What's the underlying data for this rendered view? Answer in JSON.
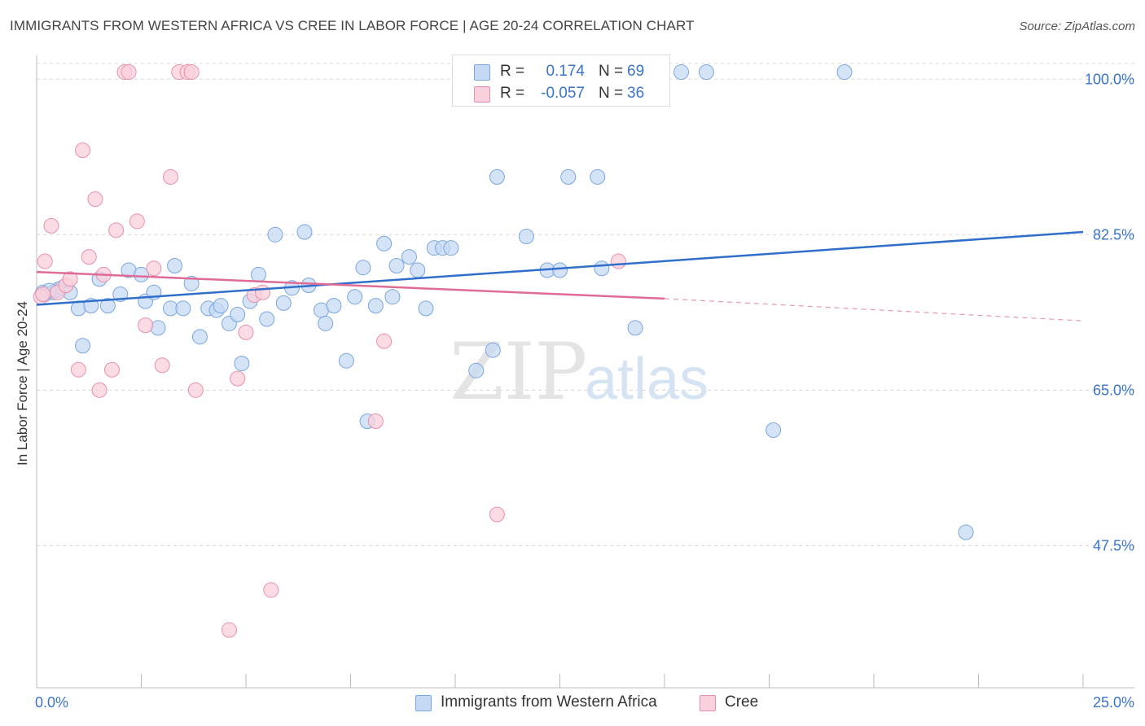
{
  "header": {
    "title": "IMMIGRANTS FROM WESTERN AFRICA VS CREE IN LABOR FORCE | AGE 20-24 CORRELATION CHART",
    "source": "Source: ZipAtlas.com"
  },
  "watermark": {
    "zip": "ZIP",
    "atlas": "atlas"
  },
  "legend": {
    "rows": [
      {
        "r_label": "R =",
        "r_value": "0.174",
        "n_label": "N =",
        "n_value": "69"
      },
      {
        "r_label": "R =",
        "r_value": "-0.057",
        "n_label": "N =",
        "n_value": "36"
      }
    ]
  },
  "bottom_legend": {
    "series1": "Immigrants from Western Africa",
    "series2": "Cree"
  },
  "colors": {
    "blue_fill": "#c5d9f3",
    "blue_stroke": "#7aa6e0",
    "blue_line": "#2f6fcb",
    "pink_fill": "#f9d0dc",
    "pink_stroke": "#e890ab",
    "pink_line": "#e06b96",
    "tick_label": "#3a74c9",
    "grid": "#d8d8d8"
  },
  "chart_data": {
    "type": "scatter",
    "title": "IMMIGRANTS FROM WESTERN AFRICA VS CREE IN LABOR FORCE | AGE 20-24 CORRELATION CHART",
    "xlabel": "",
    "ylabel": "In Labor Force | Age 20-24",
    "xlim": [
      0,
      25
    ],
    "ylim": [
      31.5,
      102.5
    ],
    "x_tick_labels": [
      {
        "value": 0,
        "label": "0.0%"
      },
      {
        "value": 25,
        "label": "25.0%"
      }
    ],
    "y_tick_labels": [
      {
        "value": 100,
        "label": "100.0%"
      },
      {
        "value": 82.5,
        "label": "82.5%"
      },
      {
        "value": 65,
        "label": "65.0%"
      },
      {
        "value": 47.5,
        "label": "47.5%"
      }
    ],
    "grid": true,
    "series": [
      {
        "name": "Immigrants from Western Africa",
        "color": "blue",
        "r": 0.174,
        "n": 69,
        "trend": {
          "x0": 0,
          "y0": 74.6,
          "x1": 25,
          "y1": 82.8
        },
        "points": [
          [
            0.15,
            76.0
          ],
          [
            0.2,
            75.8
          ],
          [
            0.4,
            76.0
          ],
          [
            0.5,
            76.3
          ],
          [
            0.6,
            76.5
          ],
          [
            0.8,
            76.0
          ],
          [
            1.0,
            74.2
          ],
          [
            1.1,
            70.0
          ],
          [
            1.3,
            74.5
          ],
          [
            1.5,
            77.5
          ],
          [
            1.7,
            74.5
          ],
          [
            2.0,
            75.8
          ],
          [
            2.2,
            78.5
          ],
          [
            2.5,
            78.0
          ],
          [
            2.6,
            75.0
          ],
          [
            2.8,
            76.0
          ],
          [
            2.9,
            72.0
          ],
          [
            3.2,
            74.2
          ],
          [
            3.3,
            79.0
          ],
          [
            3.5,
            74.2
          ],
          [
            3.7,
            77.0
          ],
          [
            3.9,
            71.0
          ],
          [
            4.1,
            74.2
          ],
          [
            4.3,
            74.0
          ],
          [
            4.4,
            74.5
          ],
          [
            4.6,
            72.5
          ],
          [
            4.8,
            73.5
          ],
          [
            4.9,
            68.0
          ],
          [
            5.1,
            75.0
          ],
          [
            5.3,
            78.0
          ],
          [
            5.5,
            73.0
          ],
          [
            5.7,
            82.5
          ],
          [
            5.9,
            74.8
          ],
          [
            6.1,
            76.5
          ],
          [
            6.4,
            82.8
          ],
          [
            6.5,
            76.8
          ],
          [
            6.8,
            74.0
          ],
          [
            6.9,
            72.5
          ],
          [
            7.1,
            74.5
          ],
          [
            7.4,
            68.3
          ],
          [
            7.6,
            75.5
          ],
          [
            7.8,
            78.8
          ],
          [
            7.9,
            61.5
          ],
          [
            8.1,
            74.5
          ],
          [
            8.3,
            81.5
          ],
          [
            8.5,
            75.5
          ],
          [
            8.6,
            79.0
          ],
          [
            8.9,
            80.0
          ],
          [
            9.1,
            78.5
          ],
          [
            9.3,
            74.2
          ],
          [
            9.5,
            81.0
          ],
          [
            9.7,
            81.0
          ],
          [
            9.9,
            81.0
          ],
          [
            10.5,
            67.2
          ],
          [
            10.9,
            69.5
          ],
          [
            11.0,
            89.0
          ],
          [
            11.7,
            82.3
          ],
          [
            12.2,
            78.5
          ],
          [
            12.5,
            78.5
          ],
          [
            12.7,
            89.0
          ],
          [
            13.4,
            89.0
          ],
          [
            13.5,
            78.7
          ],
          [
            14.3,
            72.0
          ],
          [
            15.4,
            100.8
          ],
          [
            16.0,
            100.8
          ],
          [
            17.6,
            60.5
          ],
          [
            19.3,
            100.8
          ],
          [
            22.2,
            49.0
          ],
          [
            0.3,
            76.2
          ]
        ]
      },
      {
        "name": "Cree",
        "color": "pink",
        "r": -0.057,
        "n": 36,
        "trend": {
          "x0": 0,
          "y0": 78.3,
          "x1": 15.0,
          "y1": 75.3
        },
        "trend_dashed": {
          "x0": 15.0,
          "y0": 75.3,
          "x1": 25,
          "y1": 72.8
        },
        "points": [
          [
            0.1,
            75.5
          ],
          [
            0.2,
            79.5
          ],
          [
            0.35,
            83.5
          ],
          [
            0.5,
            76.0
          ],
          [
            0.7,
            76.8
          ],
          [
            0.8,
            77.5
          ],
          [
            1.0,
            67.3
          ],
          [
            1.1,
            92.0
          ],
          [
            1.25,
            80.0
          ],
          [
            1.4,
            86.5
          ],
          [
            1.5,
            65.0
          ],
          [
            1.6,
            78.0
          ],
          [
            1.8,
            67.3
          ],
          [
            1.9,
            83.0
          ],
          [
            2.1,
            100.8
          ],
          [
            2.2,
            100.8
          ],
          [
            2.4,
            84.0
          ],
          [
            2.6,
            72.3
          ],
          [
            2.8,
            78.7
          ],
          [
            3.0,
            67.8
          ],
          [
            3.2,
            89.0
          ],
          [
            3.4,
            100.8
          ],
          [
            3.6,
            100.8
          ],
          [
            3.7,
            100.8
          ],
          [
            3.8,
            65.0
          ],
          [
            4.6,
            38.0
          ],
          [
            4.8,
            66.3
          ],
          [
            5.0,
            71.5
          ],
          [
            5.2,
            75.7
          ],
          [
            5.4,
            76.0
          ],
          [
            5.6,
            42.5
          ],
          [
            8.1,
            61.5
          ],
          [
            8.3,
            70.5
          ],
          [
            11.0,
            51.0
          ],
          [
            13.9,
            79.5
          ],
          [
            0.15,
            75.8
          ]
        ]
      }
    ]
  }
}
